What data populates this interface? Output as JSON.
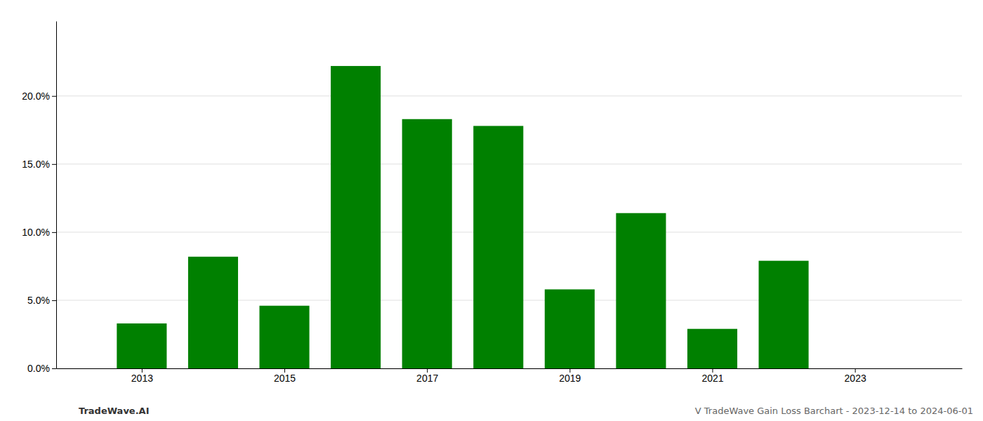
{
  "chart_data": {
    "type": "bar",
    "x": [
      2013,
      2014,
      2015,
      2016,
      2017,
      2018,
      2019,
      2020,
      2021,
      2022
    ],
    "values": [
      0.033,
      0.082,
      0.046,
      0.222,
      0.183,
      0.178,
      0.058,
      0.114,
      0.029,
      0.079
    ],
    "color": "#008000",
    "xlim": [
      2011.8,
      2024.5
    ],
    "xticks": [
      2013,
      2015,
      2017,
      2019,
      2021,
      2023
    ],
    "ylim": [
      0,
      0.255
    ],
    "yticks": [
      {
        "value": 0.0,
        "label": "0.0%"
      },
      {
        "value": 0.05,
        "label": "5.0%"
      },
      {
        "value": 0.1,
        "label": "10.0%"
      },
      {
        "value": 0.15,
        "label": "15.0%"
      },
      {
        "value": 0.2,
        "label": "20.0%"
      }
    ],
    "grid": true,
    "annotations": [
      "TradeWave.AI",
      "V TradeWave Gain Loss Barchart - 2023-12-14 to 2024-06-01"
    ]
  }
}
